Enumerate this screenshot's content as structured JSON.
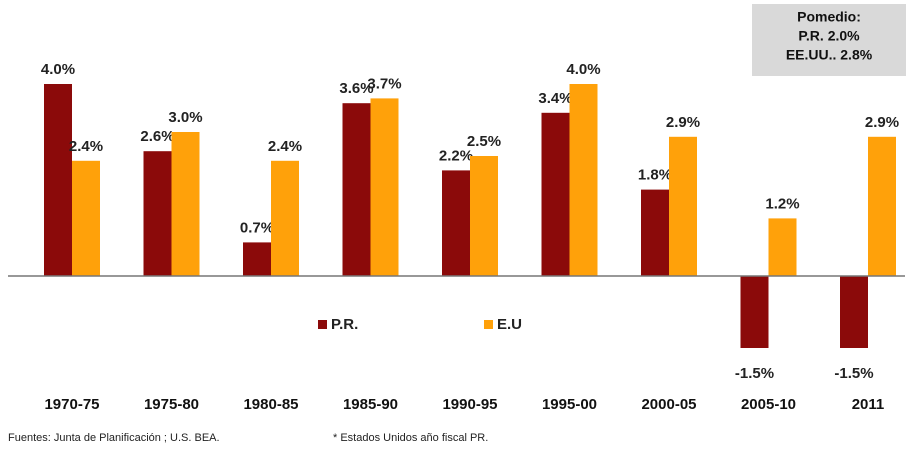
{
  "chart_data": {
    "type": "bar",
    "categories": [
      "1970-75",
      "1975-80",
      "1980-85",
      "1985-90",
      "1990-95",
      "1995-00",
      "2000-05",
      "2005-10",
      "2011"
    ],
    "series": [
      {
        "name": "P.R.",
        "color": "#8b0a0a",
        "values": [
          4.0,
          2.6,
          0.7,
          3.6,
          2.2,
          3.4,
          1.8,
          -1.5,
          -1.5
        ],
        "value_labels": [
          "4.0%",
          "2.6%",
          "0.7%",
          "3.6%",
          "2.2%",
          "3.4%",
          "1.8%",
          "-1.5%",
          "-1.5%"
        ]
      },
      {
        "name": "E.U",
        "color": "#ffa10a",
        "values": [
          2.4,
          3.0,
          2.4,
          3.7,
          2.5,
          4.0,
          2.9,
          1.2,
          2.9
        ],
        "value_labels": [
          "2.4%",
          "3.0%",
          "2.4%",
          "3.7%",
          "2.5%",
          "4.0%",
          "2.9%",
          "1.2%",
          "2.9%"
        ]
      }
    ],
    "annotation": [
      "Pomedio:",
      "P.R. 2.0%",
      "EE.UU.. 2.8%"
    ],
    "footnotes": [
      "Fuentes: Junta de Planificación ; U.S. BEA.",
      "* Estados Unidos año fiscal PR."
    ]
  }
}
